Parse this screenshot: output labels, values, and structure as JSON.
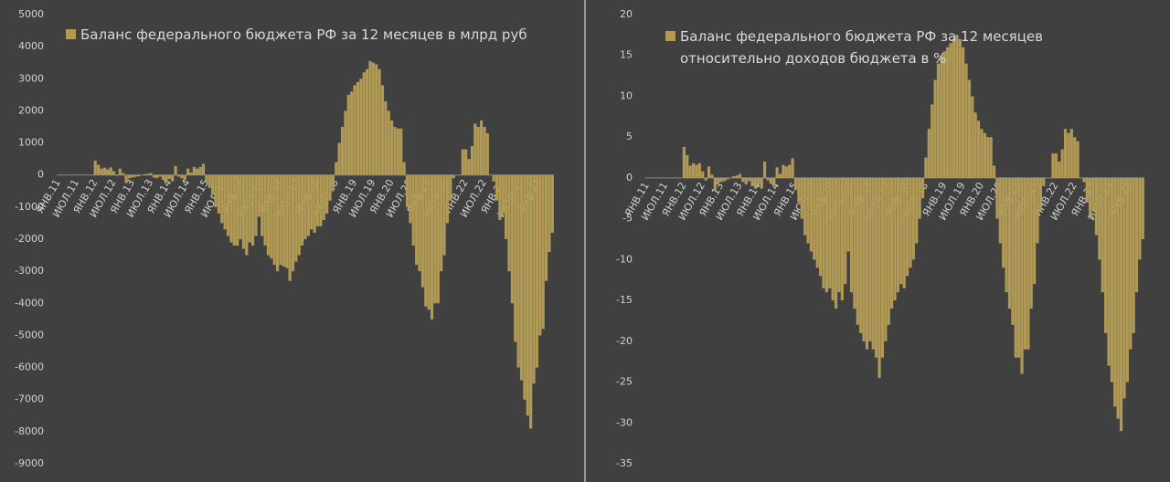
{
  "chart_data": [
    {
      "type": "bar",
      "categories": [
        "ЯНВ.11",
        null,
        null,
        null,
        null,
        null,
        "ИЮЛ.11",
        null,
        null,
        null,
        null,
        null,
        "ЯНВ.12",
        null,
        null,
        null,
        null,
        null,
        "ИЮЛ.12",
        null,
        null,
        null,
        null,
        null,
        "ЯНВ.13",
        null,
        null,
        null,
        null,
        null,
        "ИЮЛ.13",
        null,
        null,
        null,
        null,
        null,
        "ЯНВ.14",
        null,
        null,
        null,
        null,
        null,
        "ИЮЛ.14",
        null,
        null,
        null,
        null,
        null,
        "ЯНВ.15",
        null,
        null,
        null,
        null,
        null,
        "ИЮЛ.15",
        null,
        null,
        null,
        null,
        null,
        "ЯНВ.16",
        null,
        null,
        null,
        null,
        null,
        "ИЮЛ.16",
        null,
        null,
        null,
        null,
        null,
        "ЯНВ.17",
        null,
        null,
        null,
        null,
        null,
        "ИЮЛ.17",
        null,
        null,
        null,
        null,
        null,
        "ЯНВ.18",
        null,
        null,
        null,
        null,
        null,
        "ИЮЛ.18",
        null,
        null,
        null,
        null,
        null,
        "ЯНВ.19",
        null,
        null,
        null,
        null,
        null,
        "ИЮЛ.19",
        null,
        null,
        null,
        null,
        null,
        "ЯНВ.20",
        null,
        null,
        null,
        null,
        null,
        "ИЮЛ.20",
        null,
        null,
        null,
        null,
        null,
        "ЯНВ.21",
        null,
        null,
        null,
        null,
        null,
        "ИЮЛ.21",
        null,
        null,
        null,
        null,
        null,
        "ЯНВ.22",
        null,
        null,
        null,
        null,
        null,
        "ИЮЛ.22",
        null,
        null,
        null,
        null,
        null,
        "ЯНВ.23",
        null,
        null,
        null,
        null,
        null,
        "ИЮЛ.23",
        null,
        null,
        null,
        null,
        null,
        "ЯНВ.24",
        null,
        null,
        null,
        null
      ],
      "series": [
        {
          "name": "Баланс федерального бюджета РФ за 12 месяцев в млрд руб",
          "color": "#b19a55",
          "values": [
            null,
            null,
            null,
            null,
            null,
            null,
            null,
            null,
            null,
            null,
            null,
            null,
            450,
            320,
            200,
            230,
            180,
            240,
            120,
            -30,
            200,
            60,
            -250,
            -100,
            -80,
            -60,
            -40,
            0,
            30,
            40,
            60,
            -80,
            -100,
            -50,
            -150,
            -200,
            -120,
            -200,
            280,
            -50,
            -100,
            -150,
            200,
            80,
            250,
            200,
            250,
            350,
            -200,
            -400,
            -600,
            -1000,
            -1200,
            -1500,
            -1700,
            -1900,
            -2100,
            -2200,
            -2200,
            -2000,
            -2300,
            -2500,
            -2100,
            -2200,
            -1900,
            -1300,
            -1900,
            -2200,
            -2500,
            -2600,
            -2800,
            -3000,
            -2800,
            -2850,
            -2900,
            -3300,
            -3000,
            -2700,
            -2500,
            -2200,
            -2000,
            -1900,
            -1700,
            -1800,
            -1600,
            -1600,
            -1400,
            -1200,
            -800,
            -400,
            400,
            1000,
            1500,
            2000,
            2500,
            2600,
            2800,
            2900,
            3000,
            3200,
            3300,
            3550,
            3500,
            3450,
            3300,
            2800,
            2300,
            2000,
            1700,
            1500,
            1450,
            1450,
            400,
            -1000,
            -1500,
            -2200,
            -2800,
            -3000,
            -3500,
            -4100,
            -4200,
            -4500,
            -4000,
            -4000,
            -3000,
            -2500,
            -1500,
            -800,
            -100,
            0,
            0,
            800,
            800,
            500,
            900,
            1600,
            1500,
            1700,
            1500,
            1300,
            0,
            -200,
            -800,
            -1400,
            -1200,
            -2000,
            -3000,
            -4000,
            -5200,
            -6000,
            -6400,
            -7000,
            -7500,
            -7900,
            -6500,
            -6000,
            -5000,
            -4800,
            -3300,
            -2400,
            -1800
          ]
        }
      ],
      "ylim": [
        -9000,
        5000
      ],
      "yticks": [
        -9000,
        -8000,
        -7000,
        -6000,
        -5000,
        -4000,
        -3000,
        -2000,
        -1000,
        0,
        1000,
        2000,
        3000,
        4000,
        5000
      ]
    },
    {
      "type": "bar",
      "categories": [
        "ЯНВ.11",
        null,
        null,
        null,
        null,
        null,
        "ИЮЛ.11",
        null,
        null,
        null,
        null,
        null,
        "ЯНВ.12",
        null,
        null,
        null,
        null,
        null,
        "ИЮЛ.12",
        null,
        null,
        null,
        null,
        null,
        "ЯНВ.13",
        null,
        null,
        null,
        null,
        null,
        "ИЮЛ.13",
        null,
        null,
        null,
        null,
        null,
        "ЯНВ.14",
        null,
        null,
        null,
        null,
        null,
        "ИЮЛ.14",
        null,
        null,
        null,
        null,
        null,
        "ЯНВ.15",
        null,
        null,
        null,
        null,
        null,
        "ИЮЛ.15",
        null,
        null,
        null,
        null,
        null,
        "ЯНВ.16",
        null,
        null,
        null,
        null,
        null,
        "ИЮЛ.16",
        null,
        null,
        null,
        null,
        null,
        "ЯНВ.17",
        null,
        null,
        null,
        null,
        null,
        "ИЮЛ.17",
        null,
        null,
        null,
        null,
        null,
        "ЯНВ.18",
        null,
        null,
        null,
        null,
        null,
        "ИЮЛ.18",
        null,
        null,
        null,
        null,
        null,
        "ЯНВ.19",
        null,
        null,
        null,
        null,
        null,
        "ИЮЛ.19",
        null,
        null,
        null,
        null,
        null,
        "ЯНВ.20",
        null,
        null,
        null,
        null,
        null,
        "ИЮЛ.20",
        null,
        null,
        null,
        null,
        null,
        "ЯНВ.21",
        null,
        null,
        null,
        null,
        null,
        "ИЮЛ.21",
        null,
        null,
        null,
        null,
        null,
        "ЯНВ.22",
        null,
        null,
        null,
        null,
        null,
        "ИЮЛ.22",
        null,
        null,
        null,
        null,
        null,
        "ЯНВ.23",
        null,
        null,
        null,
        null,
        null,
        "ИЮЛ.23",
        null,
        null,
        null,
        null,
        null,
        "ЯНВ.24",
        null,
        null,
        null,
        null
      ],
      "series": [
        {
          "name": "Баланс федерального бюджета РФ за 12 месяцев относительно доходов бюджета в %",
          "color": "#b19a55",
          "values": [
            null,
            null,
            null,
            null,
            null,
            null,
            null,
            null,
            null,
            null,
            null,
            null,
            3.8,
            2.8,
            1.5,
            1.8,
            1.6,
            1.8,
            0.8,
            -0.3,
            1.4,
            0.4,
            -1.5,
            -0.6,
            -0.5,
            -0.4,
            -0.2,
            0,
            0.2,
            0.3,
            0.5,
            -0.5,
            -0.8,
            -0.4,
            -1,
            -1.3,
            -0.8,
            -1.3,
            2,
            -0.3,
            -0.7,
            -1,
            1.3,
            0.5,
            1.6,
            1.4,
            1.6,
            2.4,
            -1.5,
            -3,
            -5,
            -7,
            -8,
            -9,
            -10,
            -11,
            -12,
            -13.5,
            -14,
            -13.5,
            -15,
            -16,
            -14,
            -15,
            -13,
            -9,
            -14,
            -16,
            -18,
            -19,
            -20,
            -21,
            -20,
            -21,
            -22,
            -24.5,
            -22,
            -20,
            -18,
            -16,
            -15,
            -14,
            -13,
            -13.5,
            -12,
            -11,
            -10,
            -8,
            -5,
            -2.5,
            2.5,
            6,
            9,
            12,
            14,
            15,
            15.5,
            16,
            16.5,
            17,
            17.5,
            17,
            16,
            14,
            12,
            10,
            8,
            7,
            6,
            5.5,
            5,
            5,
            1.5,
            -5,
            -8,
            -11,
            -14,
            -16,
            -18,
            -22,
            -22,
            -24,
            -21,
            -21,
            -16,
            -13,
            -8,
            -4,
            -1,
            0,
            0,
            3,
            3,
            2,
            3.5,
            6,
            5.5,
            6,
            5,
            4.5,
            0,
            -0.5,
            -3,
            -5,
            -4,
            -7,
            -10,
            -14,
            -19,
            -23,
            -25,
            -28,
            -29.5,
            -31,
            -27,
            -25,
            -21,
            -19,
            -14,
            -10,
            -7.5
          ]
        }
      ],
      "ylim": [
        -35,
        20
      ],
      "yticks": [
        -35,
        -30,
        -25,
        -20,
        -15,
        -10,
        -5,
        0,
        5,
        10,
        15,
        20
      ]
    }
  ]
}
